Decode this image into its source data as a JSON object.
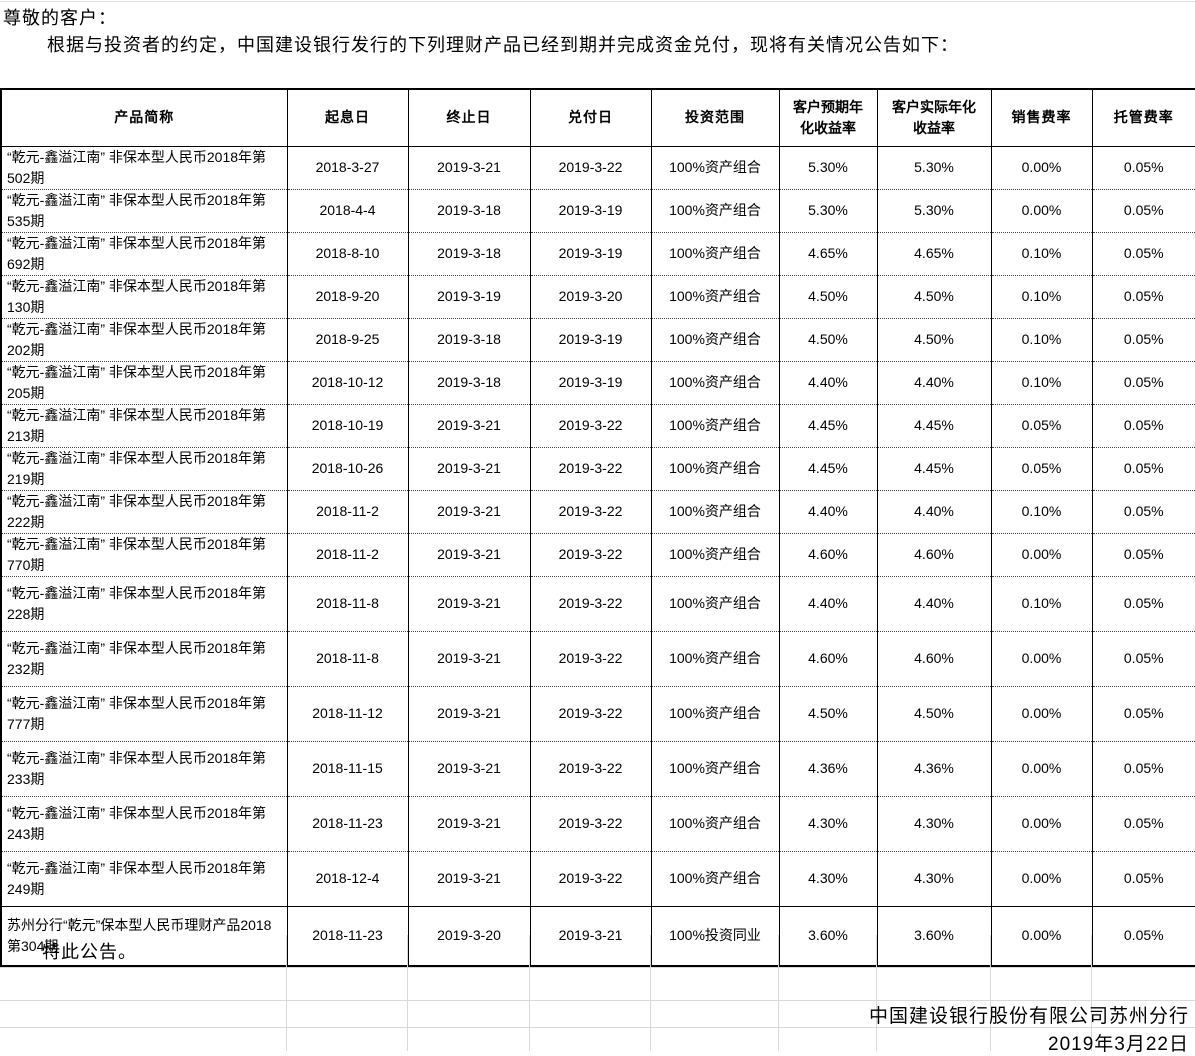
{
  "intro": {
    "salutation": "尊敬的客户：",
    "body": "根据与投资者的约定，中国建设银行发行的下列理财产品已经到期并完成资金兑付，现将有关情况公告如下："
  },
  "table": {
    "headers": [
      "产品简称",
      "起息日",
      "终止日",
      "兑付日",
      "投资范围",
      "客户预期年化收益率",
      "客户实际年化收益率",
      "销售费率",
      "托管费率"
    ],
    "rows": [
      [
        "“乾元-鑫溢江南” 非保本型人民币2018年第502期",
        "2018-3-27",
        "2019-3-21",
        "2019-3-22",
        "100%资产组合",
        "5.30%",
        "5.30%",
        "0.00%",
        "0.05%"
      ],
      [
        "“乾元-鑫溢江南” 非保本型人民币2018年第535期",
        "2018-4-4",
        "2019-3-18",
        "2019-3-19",
        "100%资产组合",
        "5.30%",
        "5.30%",
        "0.00%",
        "0.05%"
      ],
      [
        "“乾元-鑫溢江南” 非保本型人民币2018年第692期",
        "2018-8-10",
        "2019-3-18",
        "2019-3-19",
        "100%资产组合",
        "4.65%",
        "4.65%",
        "0.10%",
        "0.05%"
      ],
      [
        "“乾元-鑫溢江南” 非保本型人民币2018年第130期",
        "2018-9-20",
        "2019-3-19",
        "2019-3-20",
        "100%资产组合",
        "4.50%",
        "4.50%",
        "0.10%",
        "0.05%"
      ],
      [
        "“乾元-鑫溢江南” 非保本型人民币2018年第202期",
        "2018-9-25",
        "2019-3-18",
        "2019-3-19",
        "100%资产组合",
        "4.50%",
        "4.50%",
        "0.10%",
        "0.05%"
      ],
      [
        "“乾元-鑫溢江南” 非保本型人民币2018年第205期",
        "2018-10-12",
        "2019-3-18",
        "2019-3-19",
        "100%资产组合",
        "4.40%",
        "4.40%",
        "0.10%",
        "0.05%"
      ],
      [
        "“乾元-鑫溢江南” 非保本型人民币2018年第213期",
        "2018-10-19",
        "2019-3-21",
        "2019-3-22",
        "100%资产组合",
        "4.45%",
        "4.45%",
        "0.05%",
        "0.05%"
      ],
      [
        "“乾元-鑫溢江南” 非保本型人民币2018年第219期",
        "2018-10-26",
        "2019-3-21",
        "2019-3-22",
        "100%资产组合",
        "4.45%",
        "4.45%",
        "0.05%",
        "0.05%"
      ],
      [
        "“乾元-鑫溢江南” 非保本型人民币2018年第222期",
        "2018-11-2",
        "2019-3-21",
        "2019-3-22",
        "100%资产组合",
        "4.40%",
        "4.40%",
        "0.10%",
        "0.05%"
      ],
      [
        "“乾元-鑫溢江南” 非保本型人民币2018年第770期",
        "2018-11-2",
        "2019-3-21",
        "2019-3-22",
        "100%资产组合",
        "4.60%",
        "4.60%",
        "0.00%",
        "0.05%"
      ],
      [
        "“乾元-鑫溢江南” 非保本型人民币2018年第228期",
        "2018-11-8",
        "2019-3-21",
        "2019-3-22",
        "100%资产组合",
        "4.40%",
        "4.40%",
        "0.10%",
        "0.05%"
      ],
      [
        "“乾元-鑫溢江南” 非保本型人民币2018年第232期",
        "2018-11-8",
        "2019-3-21",
        "2019-3-22",
        "100%资产组合",
        "4.60%",
        "4.60%",
        "0.00%",
        "0.05%"
      ],
      [
        "“乾元-鑫溢江南” 非保本型人民币2018年第777期",
        "2018-11-12",
        "2019-3-21",
        "2019-3-22",
        "100%资产组合",
        "4.50%",
        "4.50%",
        "0.00%",
        "0.05%"
      ],
      [
        "“乾元-鑫溢江南” 非保本型人民币2018年第233期",
        "2018-11-15",
        "2019-3-21",
        "2019-3-22",
        "100%资产组合",
        "4.36%",
        "4.36%",
        "0.00%",
        "0.05%"
      ],
      [
        "“乾元-鑫溢江南” 非保本型人民币2018年第243期",
        "2018-11-23",
        "2019-3-21",
        "2019-3-22",
        "100%资产组合",
        "4.30%",
        "4.30%",
        "0.00%",
        "0.05%"
      ],
      [
        "“乾元-鑫溢江南” 非保本型人民币2018年第249期",
        "2018-12-4",
        "2019-3-21",
        "2019-3-22",
        "100%资产组合",
        "4.30%",
        "4.30%",
        "0.00%",
        "0.05%"
      ],
      [
        "苏州分行“乾元”保本型人民币理财产品2018第304期",
        "2018-11-23",
        "2019-3-20",
        "2019-3-21",
        "100%投资同业",
        "3.60%",
        "3.60%",
        "0.00%",
        "0.05%"
      ]
    ]
  },
  "footer": {
    "notice": "特此公告。",
    "company": "中国建设银行股份有限公司苏州分行",
    "date": "2019年3月22日"
  },
  "colors": {
    "text": "#000000",
    "table_border": "#000000",
    "faint_grid": "#d9d9d9",
    "background": "#ffffff"
  }
}
